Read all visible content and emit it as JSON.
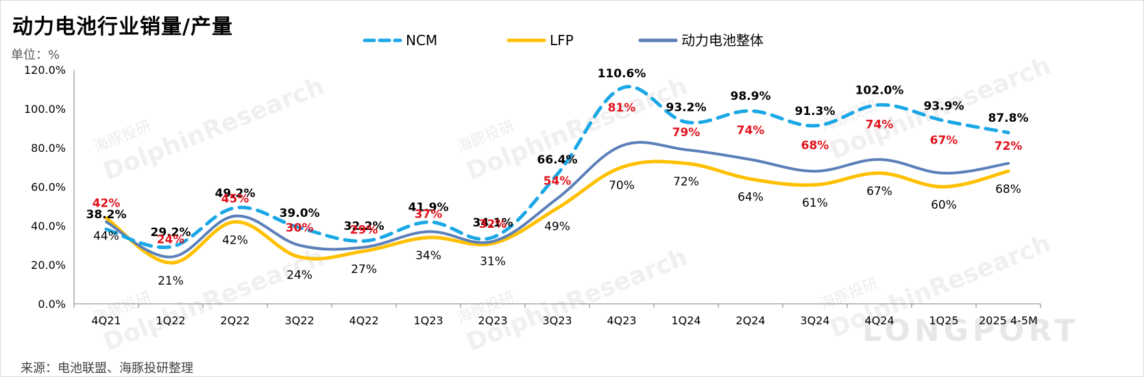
{
  "title": "动力电池行业销量/产量",
  "unit_label": "单位：%",
  "source": "来源：电池联盟、海豚投研整理",
  "watermark": {
    "brand": "DolphinResearch",
    "brand_cn": "海豚投研",
    "logo": "LONGPORT"
  },
  "colors": {
    "ncm": "#1aa7e6",
    "lfp": "#ffc000",
    "total": "#5b7fb8",
    "total_label": "#e0121c"
  },
  "chart_data": {
    "type": "line",
    "categories": [
      "4Q21",
      "1Q22",
      "2Q22",
      "3Q22",
      "4Q22",
      "1Q23",
      "2Q23",
      "3Q23",
      "4Q23",
      "1Q24",
      "2Q24",
      "3Q24",
      "4Q24",
      "1Q25",
      "2025 4-5M"
    ],
    "ylim": [
      0,
      120
    ],
    "yticks": [
      "0.0%",
      "20.0%",
      "40.0%",
      "60.0%",
      "80.0%",
      "100.0%",
      "120.0%"
    ],
    "legend_position": "top",
    "grid": false,
    "series": [
      {
        "name": "NCM",
        "style": "dashed",
        "values": [
          38.2,
          29.2,
          49.2,
          39.0,
          32.2,
          41.9,
          34.1,
          66.4,
          110.6,
          93.2,
          98.9,
          91.3,
          102.0,
          93.9,
          87.8
        ],
        "labels": [
          "38.2%",
          "29.2%",
          "49.2%",
          "39.0%",
          "32.2%",
          "41.9%",
          "34.1%",
          "66.4%",
          "110.6%",
          "93.2%",
          "98.9%",
          "91.3%",
          "102.0%",
          "93.9%",
          "87.8%"
        ]
      },
      {
        "name": "LFP",
        "style": "solid",
        "values": [
          44,
          21,
          42,
          24,
          27,
          34,
          31,
          49,
          70,
          72,
          64,
          61,
          67,
          60,
          68
        ],
        "labels": [
          "44%",
          "21%",
          "42%",
          "24%",
          "27%",
          "34%",
          "31%",
          "49%",
          "70%",
          "72%",
          "64%",
          "61%",
          "67%",
          "60%",
          "68%"
        ]
      },
      {
        "name": "动力电池整体",
        "style": "solid",
        "values": [
          42,
          24,
          45,
          30,
          29,
          37,
          32,
          54,
          81,
          79,
          74,
          68,
          74,
          67,
          72
        ],
        "labels": [
          "42%",
          "24%",
          "45%",
          "30%",
          "29%",
          "37%",
          "32%",
          "54%",
          "81%",
          "79%",
          "74%",
          "68%",
          "74%",
          "67%",
          "72%"
        ]
      }
    ]
  }
}
